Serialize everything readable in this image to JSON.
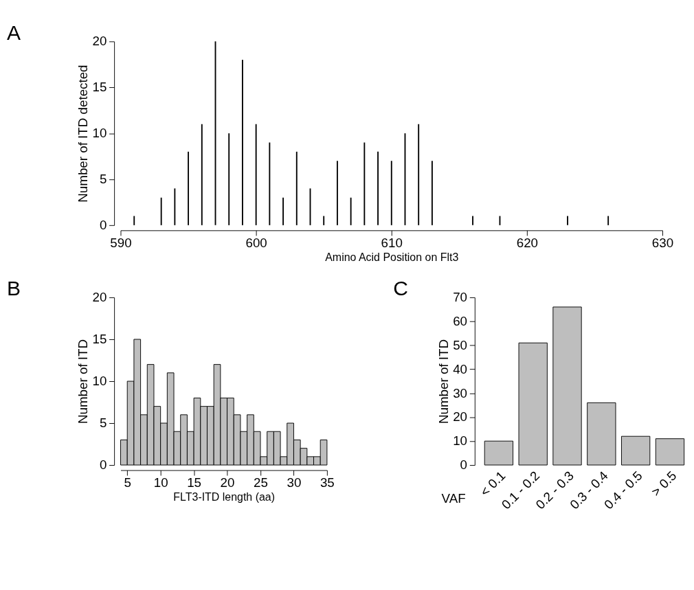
{
  "chart_data": [
    {
      "type": "bar",
      "title": "A",
      "xlabel": "Amino Acid Position on Flt3",
      "ylabel": "Number of  ITD detected",
      "x": [
        591,
        593,
        594,
        595,
        596,
        597,
        598,
        599,
        600,
        601,
        602,
        603,
        604,
        605,
        606,
        607,
        608,
        609,
        610,
        611,
        612,
        613,
        616,
        618,
        623,
        626
      ],
      "values": [
        1,
        3,
        4,
        8,
        11,
        20,
        10,
        18,
        11,
        9,
        3,
        8,
        4,
        1,
        7,
        3,
        9,
        8,
        7,
        10,
        11,
        7,
        1,
        1,
        1,
        1
      ],
      "color": "#000000",
      "xlim": [
        590,
        630
      ],
      "xticks": [
        590,
        600,
        610,
        620,
        630
      ],
      "ylim": [
        0,
        20
      ],
      "yticks": [
        0,
        5,
        10,
        15,
        20
      ],
      "grid": false
    },
    {
      "type": "histogram",
      "title": "B",
      "xlabel": "FLT3-ITD length (aa)",
      "ylabel": "Number of  ITD",
      "bins": [
        4,
        5,
        6,
        7,
        8,
        9,
        10,
        11,
        12,
        13,
        14,
        15,
        16,
        17,
        18,
        19,
        20,
        21,
        22,
        23,
        24,
        25,
        26,
        27,
        28,
        29,
        30,
        31,
        32,
        33,
        34,
        35
      ],
      "values": [
        3,
        10,
        15,
        6,
        12,
        7,
        5,
        11,
        4,
        6,
        4,
        8,
        7,
        7,
        12,
        8,
        8,
        6,
        4,
        6,
        4,
        1,
        4,
        4,
        1,
        5,
        3,
        2,
        1,
        1,
        3
      ],
      "color": "#bebebe",
      "xlim": [
        4,
        35
      ],
      "xticks": [
        5,
        10,
        15,
        20,
        25,
        30,
        35
      ],
      "ylim": [
        0,
        20
      ],
      "yticks": [
        0,
        5,
        10,
        15,
        20
      ],
      "grid": false
    },
    {
      "type": "bar",
      "title": "C",
      "xlabel": "VAF",
      "ylabel": "Number of  ITD",
      "categories": [
        "< 0.1",
        "0.1 - 0.2",
        "0.2 - 0.3",
        "0.3 - 0.4",
        "0.4 - 0.5",
        "> 0.5"
      ],
      "values": [
        10,
        51,
        66,
        26,
        12,
        11
      ],
      "color": "#bebebe",
      "ylim": [
        0,
        70
      ],
      "yticks": [
        0,
        10,
        20,
        30,
        40,
        50,
        60,
        70
      ],
      "grid": false
    }
  ]
}
